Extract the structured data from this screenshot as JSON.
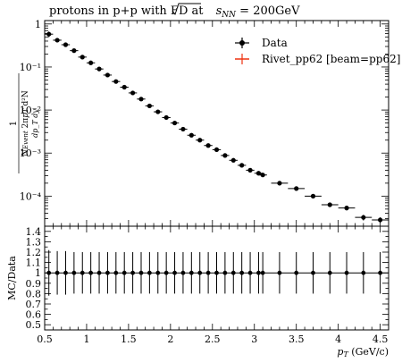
{
  "chart_data": [
    {
      "type": "scatter",
      "title": "protons in p+p with FD at √s_NN = 200GeV",
      "title_parts": {
        "prefix": "protons in p+p with FD at ",
        "root": "s",
        "root_sub": "NN",
        "suffix": " = 200GeV"
      },
      "ylabel": "1/N_Event 1/(2π p_T) d²N/(dp_T dy)",
      "ylabel_parts": {
        "one": "1",
        "nev": "N",
        "nev_sub": "Event",
        "mid": "2π",
        "pt": "p",
        "pt_sub": "T",
        "d2n": "d²N",
        "den": "dp_T dy"
      },
      "yscale": "log",
      "xlim": [
        0.5,
        4.6
      ],
      "ylim": [
        2e-05,
        1.2
      ],
      "ytick_labels": [
        "10⁻⁴",
        "10⁻³",
        "10⁻²",
        "10⁻¹",
        "1"
      ],
      "ytick_values": [
        0.0001,
        0.001,
        0.01,
        0.1,
        1
      ],
      "legend_position": "top-right",
      "series": [
        {
          "name": "Data",
          "color": "#000000",
          "x": [
            0.55,
            0.65,
            0.75,
            0.85,
            0.95,
            1.05,
            1.15,
            1.25,
            1.35,
            1.45,
            1.55,
            1.65,
            1.75,
            1.85,
            1.95,
            2.05,
            2.15,
            2.25,
            2.35,
            2.45,
            2.55,
            2.65,
            2.75,
            2.85,
            2.95,
            3.05,
            3.1,
            3.3,
            3.5,
            3.7,
            3.9,
            4.1,
            4.3,
            4.5
          ],
          "y": [
            0.58,
            0.42,
            0.33,
            0.24,
            0.17,
            0.125,
            0.09,
            0.065,
            0.046,
            0.034,
            0.025,
            0.018,
            0.0125,
            0.0091,
            0.0067,
            0.005,
            0.0036,
            0.0026,
            0.002,
            0.0015,
            0.0012,
            0.00088,
            0.00068,
            0.00052,
            0.0004,
            0.00034,
            0.00031,
            0.0002,
            0.00015,
            0.0001,
            6.3e-05,
            5.3e-05,
            3.2e-05,
            2.8e-05
          ],
          "xerr": [
            0.05,
            0.05,
            0.05,
            0.05,
            0.05,
            0.05,
            0.05,
            0.05,
            0.05,
            0.05,
            0.05,
            0.05,
            0.05,
            0.05,
            0.05,
            0.05,
            0.05,
            0.05,
            0.05,
            0.05,
            0.05,
            0.05,
            0.05,
            0.05,
            0.05,
            0.05,
            0.05,
            0.1,
            0.1,
            0.1,
            0.1,
            0.1,
            0.1,
            0.1
          ],
          "yerr_rel": [
            0.15,
            0.1,
            0.08,
            0.08,
            0.07,
            0.07,
            0.07,
            0.07,
            0.07,
            0.07,
            0.07,
            0.07,
            0.07,
            0.07,
            0.07,
            0.07,
            0.07,
            0.07,
            0.07,
            0.07,
            0.07,
            0.07,
            0.07,
            0.07,
            0.07,
            0.07,
            0.07,
            0.07,
            0.08,
            0.1,
            0.1,
            0.12,
            0.15,
            0.15
          ]
        },
        {
          "name": "Rivet_pp62 [beam=pp62]",
          "color": "#ee3311",
          "x": [],
          "y": []
        }
      ]
    },
    {
      "type": "scatter",
      "ylabel": "MC/Data",
      "xlabel": "p_T (GeV/c)",
      "xlabel_parts": {
        "p": "p",
        "sub": "T",
        "unit": " (GeV/c)"
      },
      "xlim": [
        0.5,
        4.6
      ],
      "ylim": [
        0.45,
        1.45
      ],
      "xticks": [
        0.5,
        1,
        1.5,
        2,
        2.5,
        3,
        3.5,
        4,
        4.5
      ],
      "xtick_labels": [
        "0.5",
        "1",
        "1.5",
        "2",
        "2.5",
        "3",
        "3.5",
        "4",
        "4.5"
      ],
      "yticks": [
        0.5,
        0.6,
        0.7,
        0.8,
        0.9,
        1,
        1.1,
        1.2,
        1.3,
        1.4
      ],
      "ytick_labels": [
        "0.5",
        "0.6",
        "0.7",
        "0.8",
        "0.9",
        "1",
        "1.1",
        "1.2",
        "1.3",
        "1.4"
      ],
      "series": [
        {
          "name": "Data",
          "color": "#000000",
          "x": [
            0.55,
            0.65,
            0.75,
            0.85,
            0.95,
            1.05,
            1.15,
            1.25,
            1.35,
            1.45,
            1.55,
            1.65,
            1.75,
            1.85,
            1.95,
            2.05,
            2.15,
            2.25,
            2.35,
            2.45,
            2.55,
            2.65,
            2.75,
            2.85,
            2.95,
            3.05,
            3.1,
            3.3,
            3.5,
            3.7,
            3.9,
            4.1,
            4.3,
            4.5
          ],
          "y": [
            1,
            1,
            1,
            1,
            1,
            1,
            1,
            1,
            1,
            1,
            1,
            1,
            1,
            1,
            1,
            1,
            1,
            1,
            1,
            1,
            1,
            1,
            1,
            1,
            1,
            1,
            1,
            1,
            1,
            1,
            1,
            1,
            1,
            1
          ],
          "yerr": [
            0.22,
            0.21,
            0.21,
            0.2,
            0.2,
            0.2,
            0.2,
            0.2,
            0.2,
            0.2,
            0.2,
            0.2,
            0.2,
            0.2,
            0.2,
            0.2,
            0.2,
            0.2,
            0.2,
            0.2,
            0.2,
            0.2,
            0.2,
            0.2,
            0.2,
            0.2,
            0.2,
            0.2,
            0.2,
            0.2,
            0.2,
            0.2,
            0.2,
            0.2
          ]
        }
      ]
    }
  ]
}
